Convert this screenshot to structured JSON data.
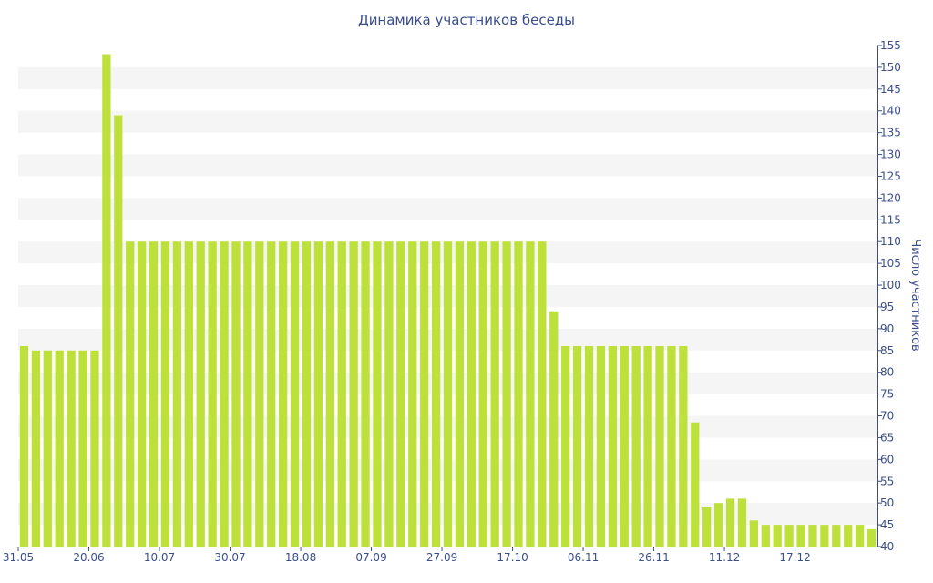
{
  "chart_data": {
    "type": "bar",
    "title": "Динамика участников беседы",
    "ylabel": "Число участников",
    "xlabel": "",
    "ylim": [
      40,
      155
    ],
    "yticks": [
      40,
      45,
      50,
      55,
      60,
      65,
      70,
      75,
      80,
      85,
      90,
      95,
      100,
      105,
      110,
      115,
      120,
      125,
      130,
      135,
      140,
      145,
      150,
      155
    ],
    "y_axis_position": "right",
    "grid": "alternating horizontal bands",
    "bar_color": "#bde13a",
    "band_color": "#f5f5f5",
    "text_color": "#3a4e8c",
    "x_tick_labels": [
      {
        "index": 0,
        "label": "31.05"
      },
      {
        "index": 6,
        "label": "20.06"
      },
      {
        "index": 12,
        "label": "10.07"
      },
      {
        "index": 18,
        "label": "30.07"
      },
      {
        "index": 24,
        "label": "18.08"
      },
      {
        "index": 30,
        "label": "07.09"
      },
      {
        "index": 36,
        "label": "27.09"
      },
      {
        "index": 42,
        "label": "17.10"
      },
      {
        "index": 48,
        "label": "06.11"
      },
      {
        "index": 54,
        "label": "26.11"
      },
      {
        "index": 60,
        "label": "11.12"
      },
      {
        "index": 66,
        "label": "17.12"
      }
    ],
    "values": [
      86,
      85,
      85,
      85,
      85,
      85,
      85,
      153,
      139,
      110,
      110,
      110,
      110,
      110,
      110,
      110,
      110,
      110,
      110,
      110,
      110,
      110,
      110,
      110,
      110,
      110,
      110,
      110,
      110,
      110,
      110,
      110,
      110,
      110,
      110,
      110,
      110,
      110,
      110,
      110,
      110,
      110,
      110,
      110,
      110,
      94,
      86,
      86,
      86,
      86,
      86,
      86,
      86,
      86,
      86,
      86,
      86,
      68.5,
      49,
      50,
      51,
      51,
      46,
      45,
      45,
      45,
      45,
      45,
      45,
      45,
      45,
      45,
      44
    ]
  }
}
